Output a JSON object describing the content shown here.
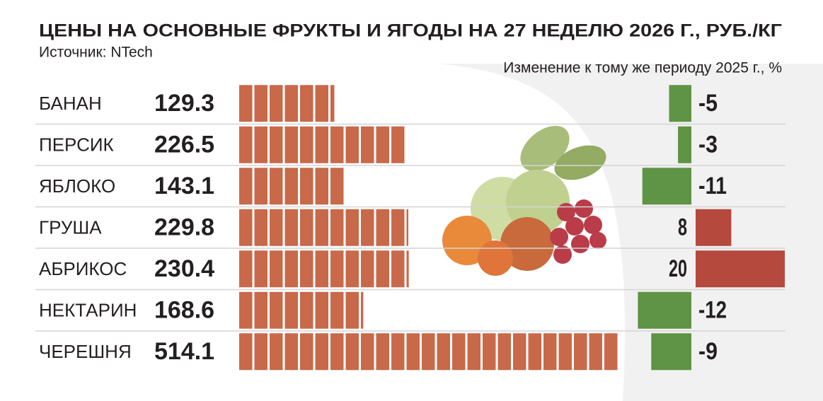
{
  "chart_data": {
    "type": "bar",
    "title": "ЦЕНЫ НА ОСНОВНЫЕ ФРУКТЫ И ЯГОДЫ НА 27 НЕДЕЛЮ 2026 Г., РУБ./КГ",
    "source": "Источник: NTech",
    "change_title": "Изменение к тому же периоду 2025 г., %",
    "categories": [
      "БАНАН",
      "ПЕРСИК",
      "ЯБЛОКО",
      "ГРУША",
      "АБРИКОС",
      "НЕКТАРИН",
      "ЧЕРЕШНЯ"
    ],
    "values": [
      129.3,
      226.5,
      143.1,
      229.8,
      230.4,
      168.6,
      514.1
    ],
    "changes": [
      -5,
      -3,
      -11,
      8,
      20,
      -12,
      -9
    ],
    "color": "#c8694a",
    "increase_color": "#b5493d",
    "decrease_color": "#5f9345"
  }
}
